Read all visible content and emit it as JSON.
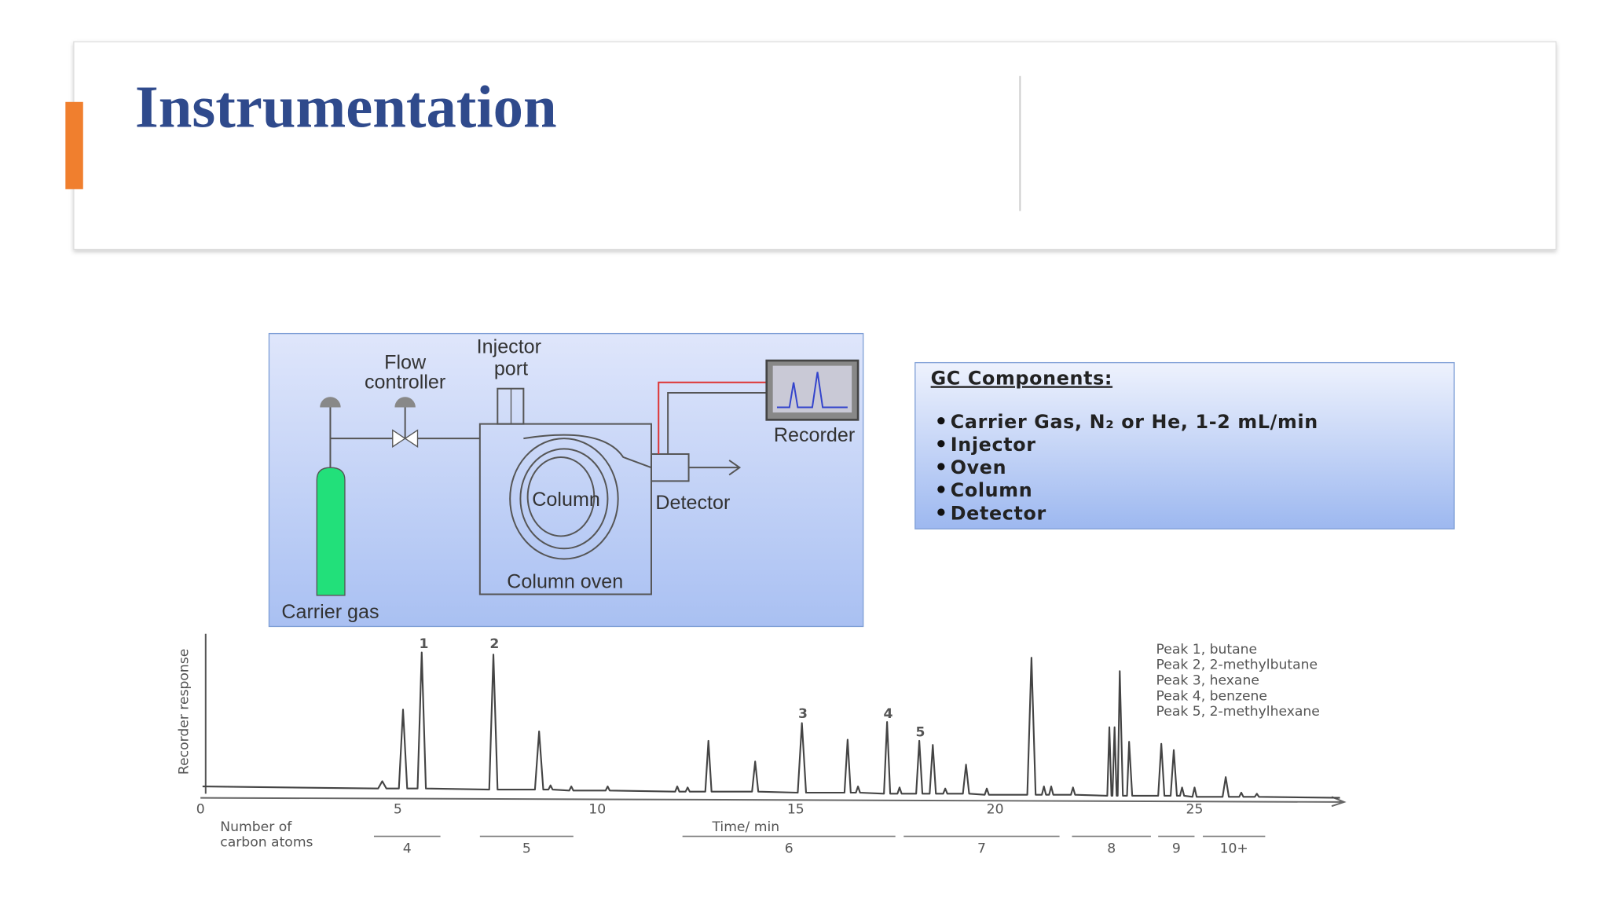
{
  "header": {
    "title": "Instrumentation"
  },
  "diagram": {
    "flow_controller": [
      "Flow",
      "controller"
    ],
    "injector_port": [
      "Injector",
      "port"
    ],
    "recorder": "Recorder",
    "column": "Column",
    "detector": "Detector",
    "column_oven": "Column oven",
    "carrier_gas": "Carrier gas"
  },
  "components": {
    "title": "GC Components:",
    "items": [
      "Carrier Gas, N₂ or He, 1-2 mL/min",
      "Injector",
      "Oven",
      "Column",
      "Detector"
    ]
  },
  "chromatogram": {
    "y_label": "Recorder response",
    "x_ticks": [
      "0",
      "5",
      "10",
      "15",
      "20",
      "25"
    ],
    "x_label": "Time/ min",
    "carbon_label": [
      "Number of",
      "carbon atoms"
    ],
    "carbon_groups": [
      "4",
      "5",
      "6",
      "7",
      "8",
      "9",
      "10+"
    ],
    "peak_labels": [
      "1",
      "2",
      "3",
      "4",
      "5"
    ],
    "legend": [
      "Peak 1, butane",
      "Peak 2, 2-methylbutane",
      "Peak 3, hexane",
      "Peak 4, benzene",
      "Peak 5, 2-methylhexane"
    ]
  }
}
